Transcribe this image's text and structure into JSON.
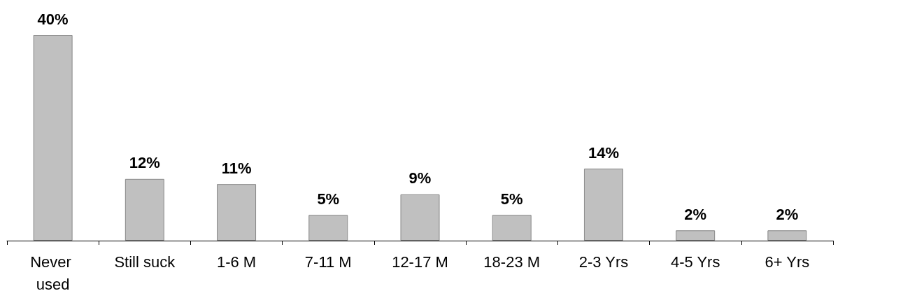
{
  "chart_data": {
    "type": "bar",
    "categories": [
      "Never used",
      "Still suck",
      "1-6 M",
      "7-11 M",
      "12-17 M",
      "18-23 M",
      "2-3 Yrs",
      "4-5 Yrs",
      "6+ Yrs"
    ],
    "values": [
      40,
      12,
      11,
      5,
      9,
      5,
      14,
      2,
      2
    ],
    "value_labels": [
      "40%",
      "12%",
      "11%",
      "5%",
      "9%",
      "5%",
      "14%",
      "2%",
      "2%"
    ],
    "color": "#c0c0c0",
    "grid": false
  }
}
